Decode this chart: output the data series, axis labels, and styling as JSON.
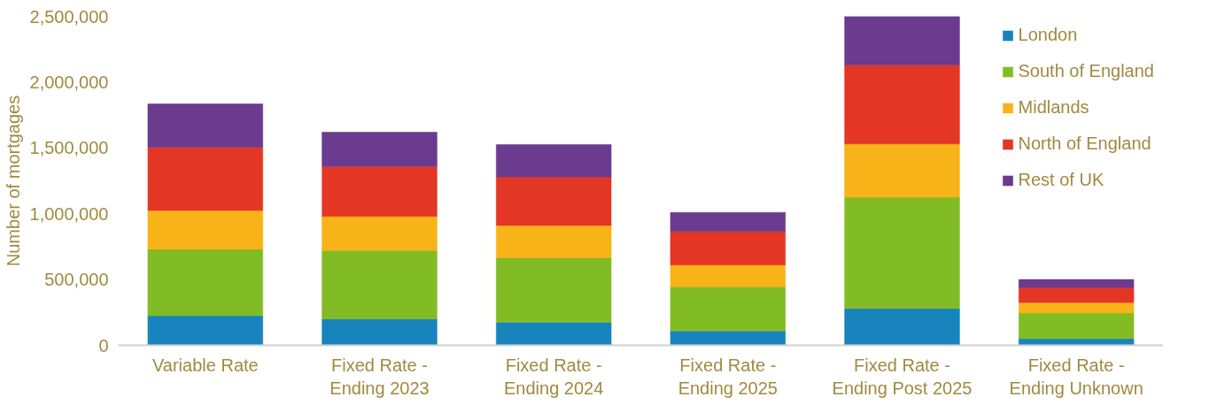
{
  "chart_data": {
    "type": "bar",
    "stacked": true,
    "ylabel": "Number of mortgages",
    "categories": [
      "Variable Rate",
      "Fixed Rate - Ending 2023",
      "Fixed Rate - Ending 2024",
      "Fixed Rate - Ending 2025",
      "Fixed Rate - Ending Post 2025",
      "Fixed Rate - Ending Unknown"
    ],
    "series": [
      {
        "name": "London",
        "color": "#1884bd",
        "values": [
          225000,
          200000,
          175000,
          110000,
          280000,
          50000
        ]
      },
      {
        "name": "South of England",
        "color": "#81bc24",
        "values": [
          505000,
          520000,
          490000,
          335000,
          845000,
          195000
        ]
      },
      {
        "name": "Midlands",
        "color": "#f8b318",
        "values": [
          295000,
          260000,
          245000,
          165000,
          405000,
          80000
        ]
      },
      {
        "name": "North of England",
        "color": "#e43625",
        "values": [
          480000,
          380000,
          370000,
          255000,
          600000,
          115000
        ]
      },
      {
        "name": "Rest of UK",
        "color": "#6a3b8e",
        "values": [
          330000,
          260000,
          245000,
          145000,
          370000,
          60000
        ]
      }
    ],
    "ylim": [
      0,
      2500000
    ],
    "yticks": [
      {
        "value": 0,
        "label": "0"
      },
      {
        "value": 500000,
        "label": "500,000"
      },
      {
        "value": 1000000,
        "label": "1,000,000"
      },
      {
        "value": 1500000,
        "label": "1,500,000"
      },
      {
        "value": 2000000,
        "label": "2,000,000"
      },
      {
        "value": 2500000,
        "label": "2,500,000"
      }
    ],
    "grid": false,
    "legend": "right"
  }
}
